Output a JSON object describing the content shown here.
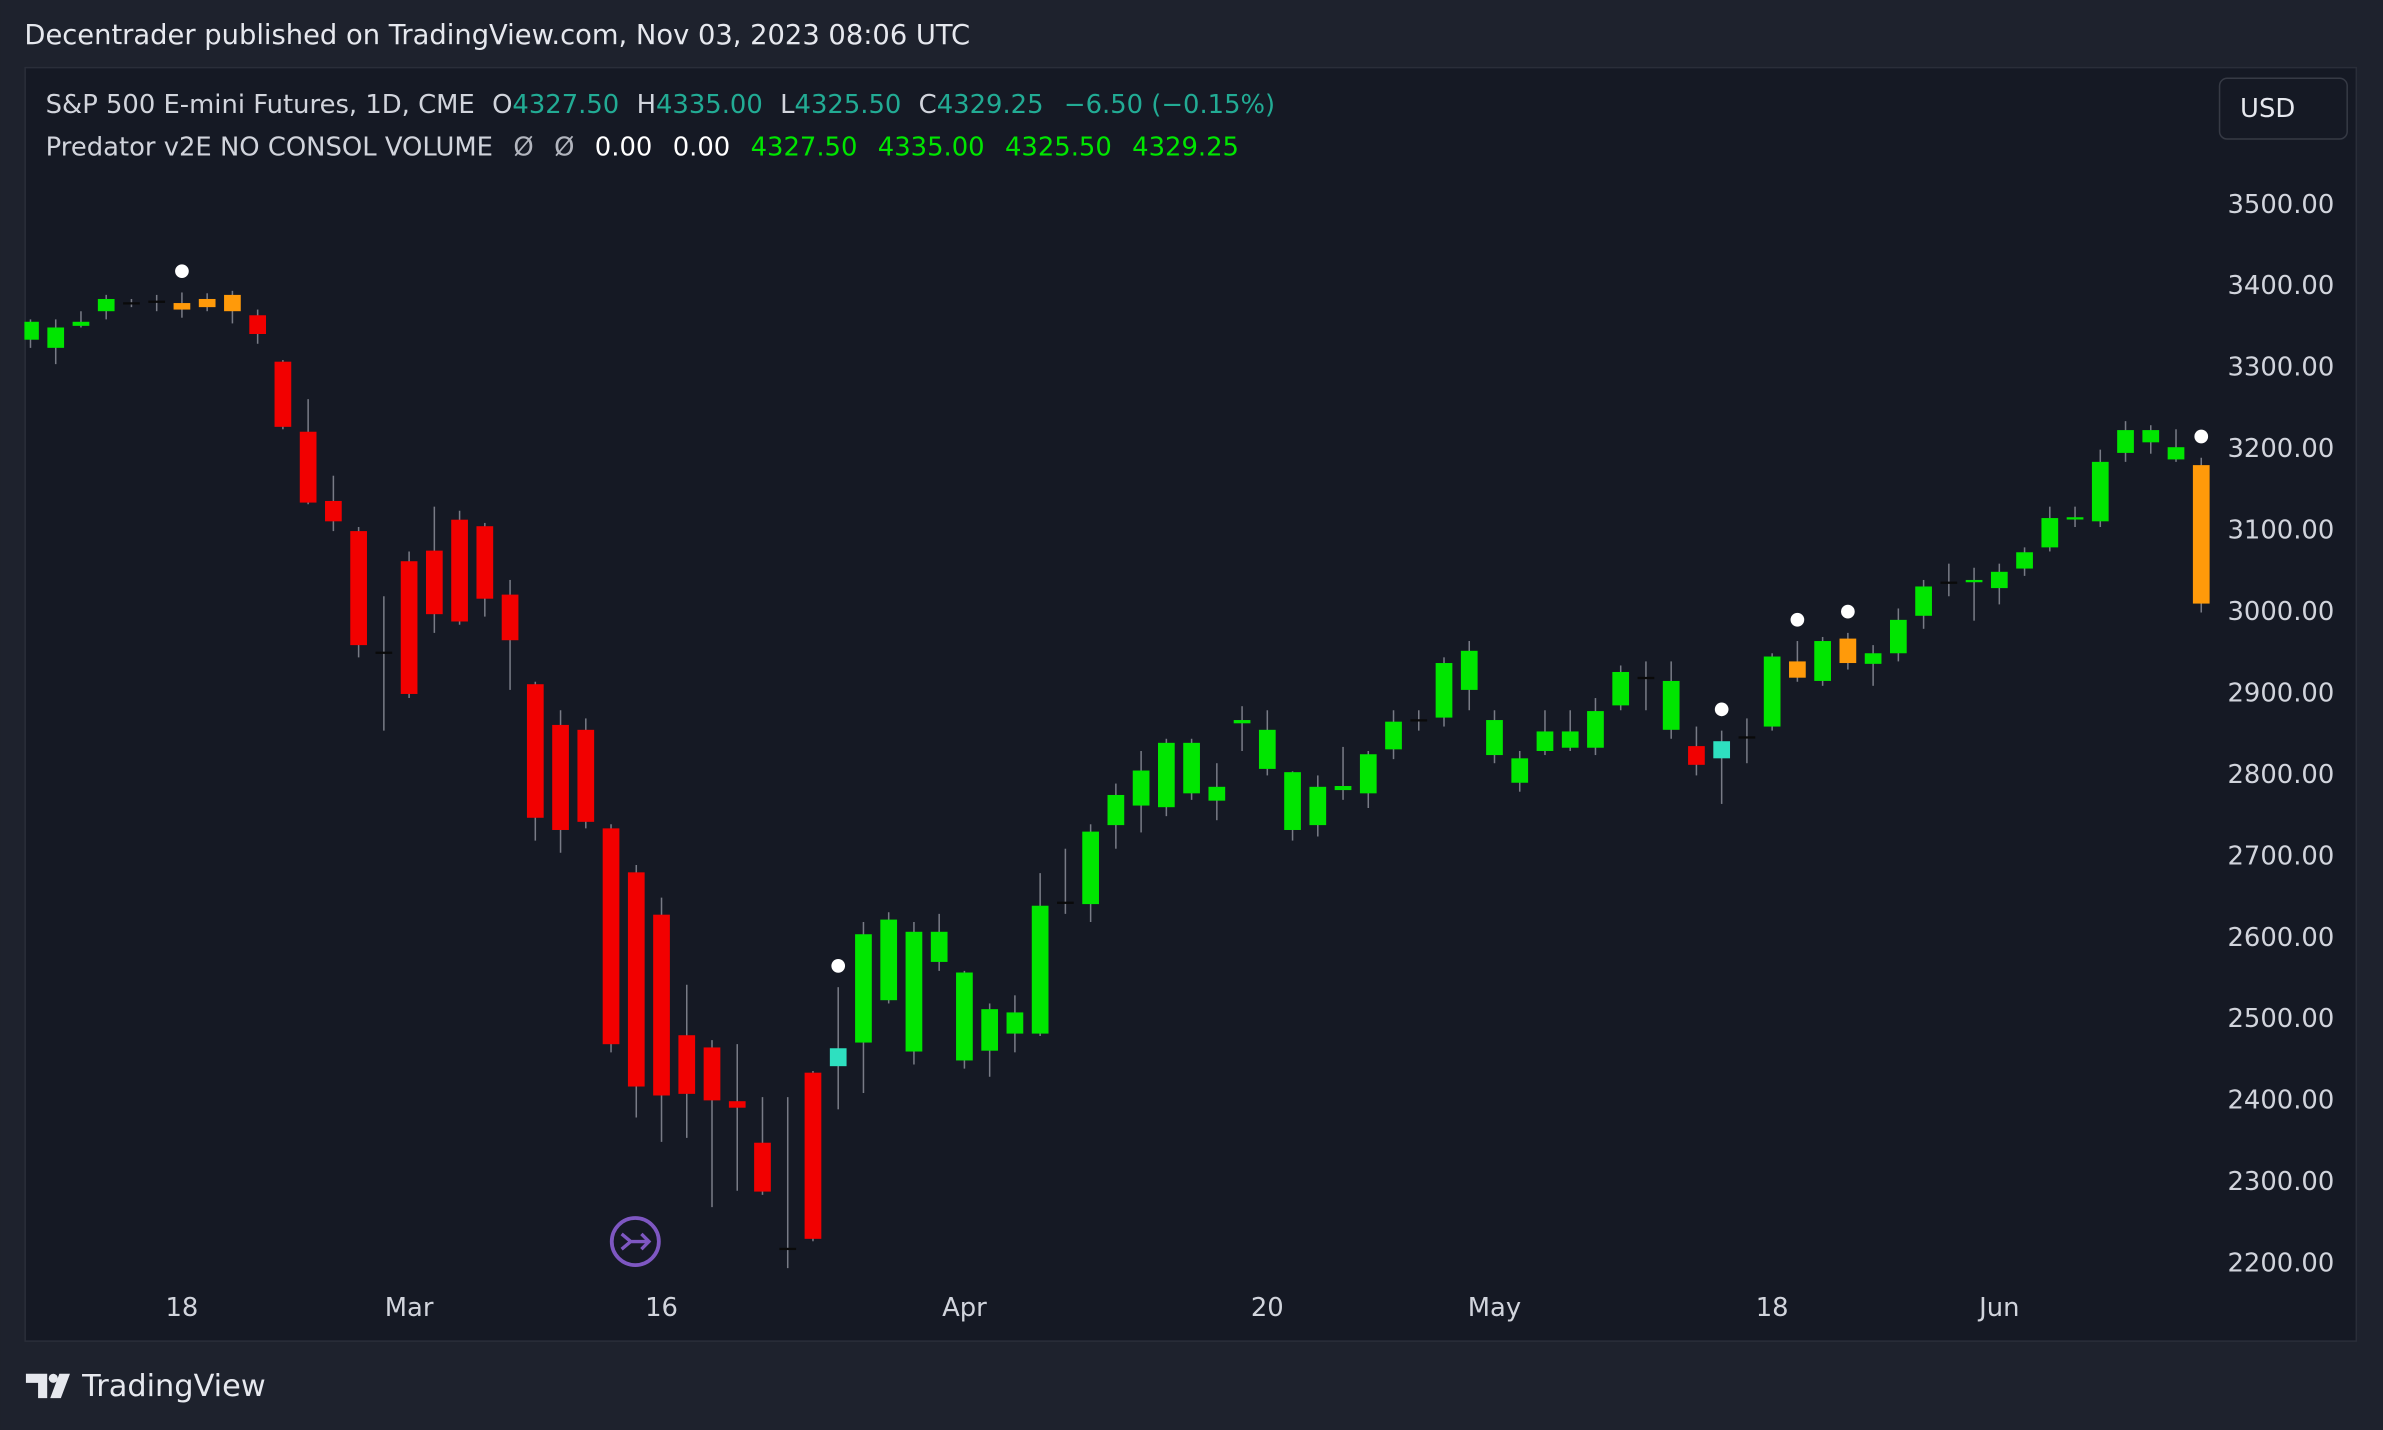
{
  "header": {
    "text": "Decentrader published on TradingView.com, Nov 03, 2023 08:06 UTC"
  },
  "legend": {
    "symbol": "S&P 500 E-mini Futures, 1D, CME",
    "open_label": "O",
    "open": "4327.50",
    "high_label": "H",
    "high": "4335.00",
    "low_label": "L",
    "low": "4325.50",
    "close_label": "C",
    "close": "4329.25",
    "change": "−6.50 (−0.15%)"
  },
  "indicator": {
    "name": "Predator v2E NO CONSOL VOLUME",
    "values": [
      "Ø",
      "Ø",
      "0.00",
      "0.00",
      "4327.50",
      "4335.00",
      "4325.50",
      "4329.25"
    ]
  },
  "currency": "USD",
  "footer": {
    "logo": "TradingView"
  },
  "chart_data": {
    "type": "candlestick",
    "categories": [
      null,
      null,
      null,
      null,
      null,
      null,
      "18",
      null,
      null,
      null,
      null,
      null,
      null,
      null,
      null,
      "Mar",
      null,
      null,
      null,
      null,
      null,
      null,
      null,
      null,
      null,
      "16",
      null,
      null,
      null,
      null,
      null,
      null,
      null,
      null,
      null,
      null,
      null,
      "Apr",
      null,
      null,
      null,
      null,
      null,
      null,
      null,
      null,
      null,
      null,
      null,
      "20",
      null,
      null,
      null,
      null,
      null,
      null,
      null,
      null,
      "May",
      null,
      null,
      null,
      null,
      null,
      null,
      null,
      null,
      null,
      null,
      "18",
      null,
      null,
      null,
      null,
      null,
      null,
      null,
      null,
      "Jun",
      null,
      null,
      null,
      null,
      null,
      null,
      null,
      null
    ],
    "open": [
      3335,
      3325,
      3352,
      3370,
      3380,
      3382,
      3380,
      3375,
      3390,
      3365,
      3308,
      3222,
      3137,
      3100,
      2952,
      3063,
      3076,
      3114,
      3106,
      3022,
      2912,
      2862,
      2856,
      2735,
      2681,
      2629,
      2481,
      2466,
      2400,
      2349,
      2220,
      2435,
      2443,
      2472,
      2524,
      2461,
      2571,
      2450,
      2462,
      2483,
      2483,
      2644,
      2642,
      2739,
      2763,
      2761,
      2778,
      2769,
      2864,
      2808,
      2733,
      2739,
      2782,
      2778,
      2832,
      2868,
      2871,
      2905,
      2825,
      2791,
      2830,
      2834,
      2834,
      2886,
      2920,
      2856,
      2836,
      2821,
      2847,
      2860,
      2940,
      2916,
      2968,
      2937,
      2950,
      2996,
      3037,
      3038,
      3030,
      3054,
      3080,
      3115,
      3112,
      3196,
      3209,
      3188,
      3181
    ],
    "high": [
      3360,
      3360,
      3370,
      3390,
      3385,
      3390,
      3393,
      3392,
      3395,
      3372,
      3310,
      3262,
      3168,
      3105,
      3020,
      3075,
      3130,
      3125,
      3110,
      3040,
      2915,
      2880,
      2870,
      2740,
      2690,
      2650,
      2543,
      2475,
      2470,
      2405,
      2405,
      2437,
      2540,
      2620,
      2632,
      2620,
      2630,
      2560,
      2520,
      2530,
      2680,
      2710,
      2740,
      2790,
      2830,
      2845,
      2845,
      2815,
      2885,
      2880,
      2805,
      2800,
      2835,
      2830,
      2880,
      2880,
      2945,
      2965,
      2880,
      2830,
      2880,
      2880,
      2895,
      2935,
      2940,
      2940,
      2860,
      2855,
      2870,
      2950,
      2965,
      2970,
      2975,
      2960,
      3005,
      3040,
      3060,
      3055,
      3060,
      3080,
      3130,
      3130,
      3200,
      3235,
      3230,
      3225,
      3190
    ],
    "low": [
      3325,
      3305,
      3350,
      3360,
      3375,
      3370,
      3362,
      3370,
      3355,
      3330,
      3225,
      3133,
      3100,
      2945,
      2855,
      2895,
      2975,
      2985,
      2995,
      2905,
      2720,
      2705,
      2735,
      2460,
      2380,
      2350,
      2355,
      2270,
      2290,
      2285,
      2195,
      2228,
      2390,
      2410,
      2520,
      2445,
      2560,
      2440,
      2430,
      2460,
      2480,
      2630,
      2620,
      2710,
      2730,
      2750,
      2770,
      2745,
      2830,
      2800,
      2720,
      2725,
      2770,
      2760,
      2820,
      2855,
      2860,
      2880,
      2815,
      2780,
      2825,
      2830,
      2825,
      2880,
      2880,
      2845,
      2800,
      2765,
      2815,
      2855,
      2915,
      2910,
      2930,
      2910,
      2940,
      2980,
      3020,
      2990,
      3010,
      3045,
      3075,
      3105,
      3105,
      3185,
      3195,
      3185,
      3000
    ],
    "close": [
      3357,
      3350,
      3357,
      3385,
      3381,
      3383,
      3372,
      3385,
      3370,
      3342,
      3228,
      3135,
      3112,
      2960,
      2950,
      2900,
      2998,
      2989,
      3017,
      2966,
      2748,
      2733,
      2743,
      2470,
      2418,
      2407,
      2409,
      2401,
      2392,
      2289,
      2218,
      2231,
      2465,
      2605,
      2623,
      2608,
      2608,
      2558,
      2513,
      2509,
      2640,
      2645,
      2731,
      2776,
      2806,
      2840,
      2840,
      2786,
      2868,
      2856,
      2804,
      2786,
      2787,
      2826,
      2866,
      2869,
      2938,
      2953,
      2868,
      2821,
      2854,
      2854,
      2879,
      2927,
      2921,
      2916,
      2813,
      2842,
      2848,
      2946,
      2920,
      2965,
      2938,
      2950,
      2991,
      3032,
      3038,
      3040,
      3050,
      3074,
      3116,
      3117,
      3185,
      3224,
      3224,
      3203,
      3011
    ],
    "candle_colors": [
      "g",
      "g",
      "g",
      "g",
      "d",
      "d",
      "o",
      "o",
      "o",
      "r",
      "r",
      "r",
      "r",
      "r",
      "d",
      "r",
      "r",
      "r",
      "r",
      "r",
      "r",
      "r",
      "r",
      "r",
      "r",
      "r",
      "r",
      "r",
      "r",
      "r",
      "d",
      "r",
      "c",
      "g",
      "g",
      "g",
      "g",
      "g",
      "g",
      "g",
      "g",
      "d",
      "g",
      "g",
      "g",
      "g",
      "g",
      "g",
      "g",
      "g",
      "g",
      "g",
      "g",
      "g",
      "g",
      "d",
      "g",
      "g",
      "g",
      "g",
      "g",
      "g",
      "g",
      "g",
      "d",
      "g",
      "r",
      "c",
      "d",
      "g",
      "o",
      "g",
      "o",
      "g",
      "g",
      "g",
      "d",
      "g",
      "g",
      "g",
      "g",
      "g",
      "g",
      "g",
      "g",
      "g",
      "o"
    ],
    "palette": {
      "g": "#00e600",
      "r": "#f20000",
      "o": "#ff9a0a",
      "c": "#2ee0c0",
      "d": "#0a0a0a"
    },
    "wick_color": "#787b86",
    "markers": [
      6,
      32,
      67,
      70,
      72,
      86
    ],
    "marker_color": "#ffffff",
    "ylim": [
      2181,
      3670
    ],
    "yticks": [
      {
        "value": 3500,
        "label": "3500.00"
      },
      {
        "value": 3400,
        "label": "3400.00"
      },
      {
        "value": 3300,
        "label": "3300.00"
      },
      {
        "value": 3200,
        "label": "3200.00"
      },
      {
        "value": 3100,
        "label": "3100.00"
      },
      {
        "value": 3000,
        "label": "3000.00"
      },
      {
        "value": 2900,
        "label": "2900.00"
      },
      {
        "value": 2800,
        "label": "2800.00"
      },
      {
        "value": 2700,
        "label": "2700.00"
      },
      {
        "value": 2600,
        "label": "2600.00"
      },
      {
        "value": 2500,
        "label": "2500.00"
      },
      {
        "value": 2400,
        "label": "2400.00"
      },
      {
        "value": 2300,
        "label": "2300.00"
      },
      {
        "value": 2200,
        "label": "2200.00"
      }
    ],
    "grid": false
  }
}
